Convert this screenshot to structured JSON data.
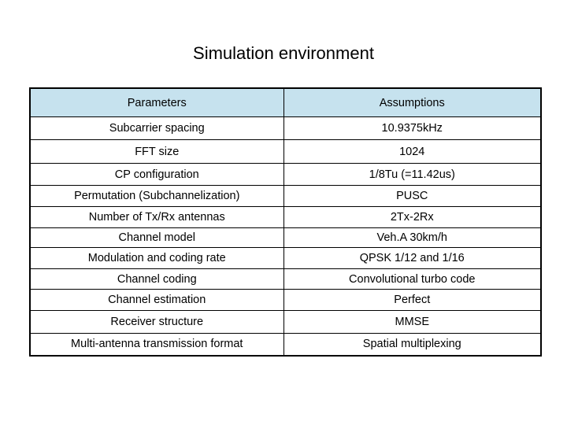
{
  "slide": {
    "title": "Simulation environment"
  },
  "table": {
    "header_color": "#c6e2ee",
    "columns": [
      "Parameters",
      "Assumptions"
    ],
    "rows": [
      [
        "Subcarrier spacing",
        "10.9375kHz"
      ],
      [
        "FFT size",
        "1024"
      ],
      [
        "CP configuration",
        "1/8Tu (=11.42us)"
      ],
      [
        "Permutation (Subchannelization)",
        "PUSC"
      ],
      [
        "Number of Tx/Rx antennas",
        "2Tx-2Rx"
      ],
      [
        "Channel model",
        "Veh.A 30km/h"
      ],
      [
        "Modulation and coding rate",
        "QPSK 1/12 and 1/16"
      ],
      [
        "Channel coding",
        "Convolutional turbo code"
      ],
      [
        "Channel estimation",
        "Perfect"
      ],
      [
        "Receiver structure",
        "MMSE"
      ],
      [
        "Multi-antenna transmission format",
        "Spatial multiplexing"
      ]
    ]
  }
}
